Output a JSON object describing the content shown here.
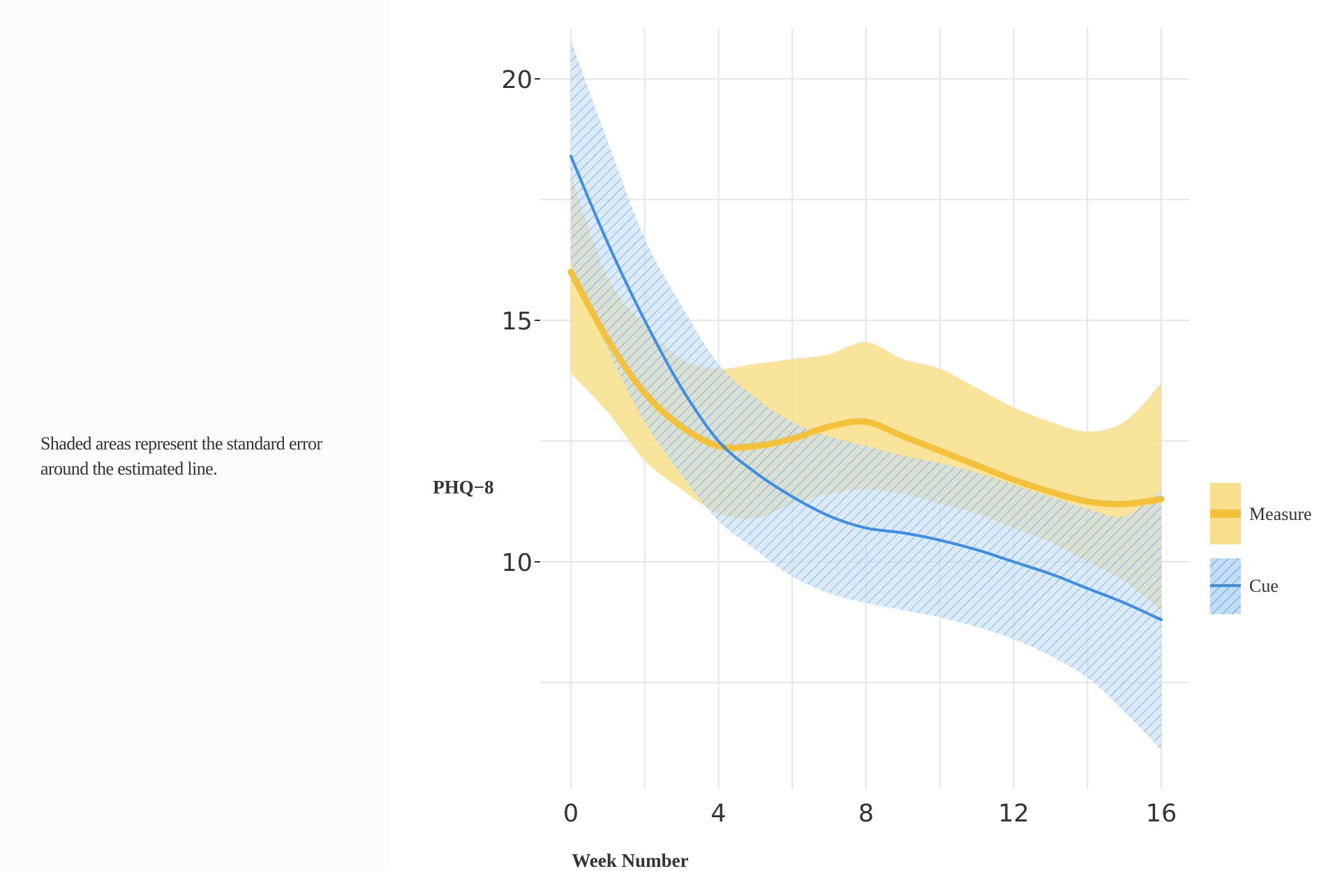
{
  "caption": {
    "line1": "Shaded areas represent the standard error",
    "line2": "around the estimated line."
  },
  "colors": {
    "measure_line": "#F3C13A",
    "measure_band": "#F8DF8B",
    "cue_line": "#3E8EE6",
    "cue_band": "#C4DDF6",
    "cue_hatch": "#4B8FDC",
    "grid": "#E6E6E6",
    "axis_text": "#333333"
  },
  "chart_data": {
    "type": "line",
    "title": "",
    "xlabel": "Week Number",
    "ylabel": "PHQ−8",
    "xlim": [
      0,
      16
    ],
    "ylim": [
      5.5,
      21
    ],
    "x_ticks": [
      0,
      4,
      8,
      12,
      16
    ],
    "y_ticks": [
      10,
      15,
      20
    ],
    "x_tick_labels": [
      "0",
      "4",
      "8",
      "12",
      "16"
    ],
    "y_tick_labels": [
      "10",
      "15",
      "20"
    ],
    "legend_position": "right",
    "series": [
      {
        "name": "Measure",
        "band_style": "solid",
        "x": [
          0,
          1,
          2,
          3,
          4,
          5,
          6,
          7,
          8,
          9,
          10,
          11,
          12,
          13,
          14,
          15,
          16
        ],
        "y": [
          16.0,
          14.6,
          13.5,
          12.8,
          12.4,
          12.4,
          12.55,
          12.8,
          12.9,
          12.6,
          12.3,
          12.0,
          11.7,
          11.45,
          11.25,
          11.2,
          11.3
        ],
        "lower": [
          13.9,
          13.1,
          12.1,
          11.5,
          11.0,
          10.9,
          11.2,
          11.4,
          11.5,
          11.4,
          11.2,
          11.0,
          10.7,
          10.4,
          10.0,
          9.6,
          9.0
        ],
        "upper": [
          18.0,
          15.9,
          14.9,
          14.2,
          14.0,
          14.1,
          14.2,
          14.3,
          14.55,
          14.2,
          14.0,
          13.6,
          13.2,
          12.9,
          12.7,
          12.9,
          13.7
        ]
      },
      {
        "name": "Cue",
        "band_style": "hatched",
        "x": [
          0,
          1,
          2,
          3,
          4,
          5,
          6,
          7,
          8,
          9,
          10,
          11,
          12,
          13,
          14,
          15,
          16
        ],
        "y": [
          18.4,
          16.6,
          15.0,
          13.6,
          12.5,
          11.85,
          11.35,
          10.95,
          10.7,
          10.6,
          10.45,
          10.25,
          10.0,
          9.75,
          9.45,
          9.15,
          8.8
        ],
        "lower": [
          16.2,
          14.4,
          12.9,
          11.8,
          10.85,
          10.25,
          9.7,
          9.35,
          9.15,
          9.0,
          8.85,
          8.65,
          8.4,
          8.05,
          7.6,
          6.9,
          6.1
        ],
        "upper": [
          20.8,
          18.7,
          16.7,
          15.3,
          14.1,
          13.4,
          12.9,
          12.6,
          12.4,
          12.2,
          12.05,
          11.85,
          11.6,
          11.35,
          11.1,
          10.95,
          11.5
        ]
      }
    ]
  }
}
